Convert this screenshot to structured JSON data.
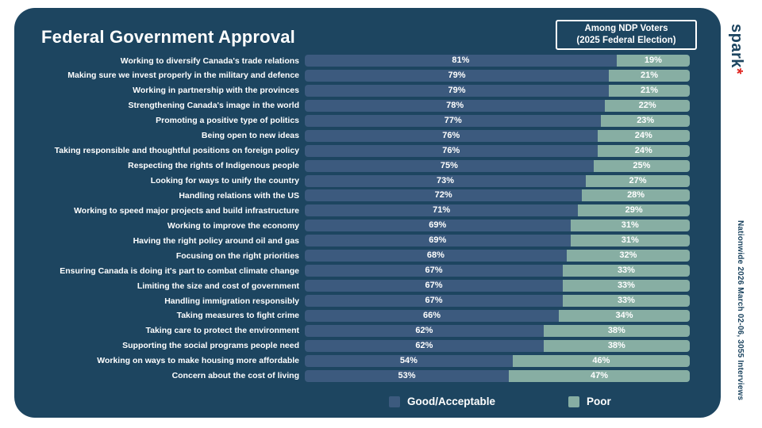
{
  "colors": {
    "page_bg": "#ffffff",
    "card_bg": "#1d4560",
    "good": "#3c5a7e",
    "poor": "#87aea3",
    "text": "#ffffff",
    "logo_mark": "#e02520"
  },
  "badge": {
    "line1": "Among NDP Voters",
    "line2": "(2025 Federal Election)"
  },
  "branding": {
    "logo_text": "spark",
    "logo_mark": "*"
  },
  "footnote": "Nationwide 2026 March 02-06, 3055 Interviews",
  "chart_data": {
    "type": "bar",
    "orientation": "horizontal",
    "stacked": true,
    "unit": "%",
    "title": "Federal Government Approval",
    "legend_position": "bottom",
    "categories": [
      "Working to diversify Canada's trade relations",
      "Making sure we invest properly in the military and defence",
      "Working in partnership with the provinces",
      "Strengthening Canada's image in the world",
      "Promoting a positive type of politics",
      "Being open to new ideas",
      "Taking responsible and thoughtful positions on foreign policy",
      "Respecting the rights of Indigenous people",
      "Looking for ways to unify the country",
      "Handling relations with the US",
      "Working to speed major projects and build infrastructure",
      "Working to improve the economy",
      "Having the right policy around oil and gas",
      "Focusing on the right priorities",
      "Ensuring Canada is doing it's part to combat climate change",
      "Limiting the size and cost of government",
      "Handling immigration responsibly",
      "Taking measures to fight crime",
      "Taking care to protect the environment",
      "Supporting the social programs people need",
      "Working on ways to make housing more affordable",
      "Concern about the cost of living"
    ],
    "series": [
      {
        "name": "Good/Acceptable",
        "color": "#3c5a7e",
        "values": [
          81,
          79,
          79,
          78,
          77,
          76,
          76,
          75,
          73,
          72,
          71,
          69,
          69,
          68,
          67,
          67,
          67,
          66,
          62,
          62,
          54,
          53
        ]
      },
      {
        "name": "Poor",
        "color": "#87aea3",
        "values": [
          19,
          21,
          21,
          22,
          23,
          24,
          24,
          25,
          27,
          28,
          29,
          31,
          31,
          32,
          33,
          33,
          33,
          34,
          38,
          38,
          46,
          47
        ]
      }
    ]
  }
}
